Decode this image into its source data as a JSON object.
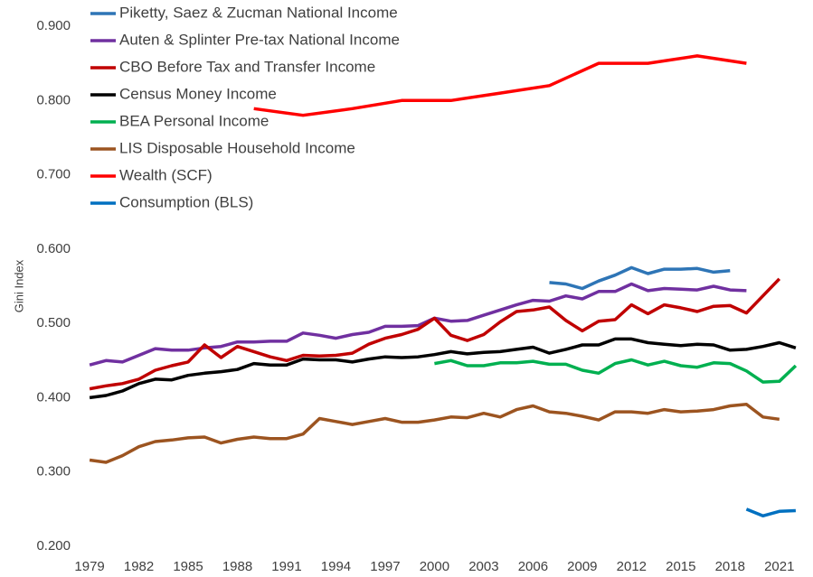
{
  "chart_data": {
    "type": "line",
    "y_label": "Gini Index",
    "x": [
      1979,
      1980,
      1981,
      1982,
      1983,
      1984,
      1985,
      1986,
      1987,
      1988,
      1989,
      1990,
      1991,
      1992,
      1993,
      1994,
      1995,
      1996,
      1997,
      1998,
      1999,
      2000,
      2001,
      2002,
      2003,
      2004,
      2005,
      2006,
      2007,
      2008,
      2009,
      2010,
      2011,
      2012,
      2013,
      2014,
      2015,
      2016,
      2017,
      2018,
      2019,
      2020,
      2021,
      2022
    ],
    "series": [
      {
        "name": "Piketty, Saez & Zucman National Income",
        "color": "#2e75b6",
        "x": [
          2007,
          2008,
          2009,
          2010,
          2011,
          2012,
          2013,
          2014,
          2015,
          2016,
          2017,
          2018
        ],
        "values": [
          0.555,
          0.553,
          0.547,
          0.557,
          0.565,
          0.575,
          0.567,
          0.573,
          0.573,
          0.574,
          0.569,
          0.571
        ]
      },
      {
        "name": "Auten & Splinter Pre-tax National Income",
        "color": "#7030a0",
        "values": [
          0.444,
          0.45,
          0.448,
          0.457,
          0.466,
          0.464,
          0.464,
          0.467,
          0.469,
          0.475,
          0.475,
          0.476,
          0.476,
          0.487,
          0.484,
          0.48,
          0.485,
          0.488,
          0.496,
          0.496,
          0.497,
          0.507,
          0.503,
          0.504,
          0.511,
          0.518,
          0.525,
          0.531,
          0.53,
          0.537,
          0.533,
          0.543,
          0.543,
          0.553,
          0.544,
          0.547,
          0.546,
          0.545,
          0.55,
          0.545,
          0.544,
          null,
          null,
          null
        ]
      },
      {
        "name": "CBO Before Tax and Transfer Income",
        "color": "#c00000",
        "values": [
          0.412,
          0.416,
          0.419,
          0.425,
          0.437,
          0.443,
          0.448,
          0.471,
          0.454,
          0.469,
          0.462,
          0.455,
          0.45,
          0.457,
          0.456,
          0.457,
          0.46,
          0.472,
          0.48,
          0.485,
          0.492,
          0.507,
          0.484,
          0.477,
          0.485,
          0.502,
          0.516,
          0.518,
          0.522,
          0.504,
          0.49,
          0.503,
          0.505,
          0.525,
          0.513,
          0.525,
          0.521,
          0.516,
          0.523,
          0.524,
          0.514,
          0.537,
          0.56,
          null
        ]
      },
      {
        "name": "Census Money Income",
        "color": "#000000",
        "values": [
          0.4,
          0.403,
          0.409,
          0.419,
          0.425,
          0.424,
          0.43,
          0.433,
          0.435,
          0.438,
          0.446,
          0.444,
          0.444,
          0.452,
          0.451,
          0.451,
          0.448,
          0.452,
          0.455,
          0.454,
          0.455,
          0.458,
          0.462,
          0.459,
          0.461,
          0.462,
          0.465,
          0.468,
          0.46,
          0.465,
          0.471,
          0.471,
          0.479,
          0.479,
          0.474,
          0.472,
          0.47,
          0.472,
          0.471,
          0.464,
          0.465,
          0.469,
          0.474,
          0.467
        ]
      },
      {
        "name": "BEA Personal Income",
        "color": "#00b050",
        "values": [
          null,
          null,
          null,
          null,
          null,
          null,
          null,
          null,
          null,
          null,
          null,
          null,
          null,
          null,
          null,
          null,
          null,
          null,
          null,
          null,
          null,
          0.446,
          0.45,
          0.443,
          0.443,
          0.447,
          0.447,
          0.449,
          0.445,
          0.445,
          0.437,
          0.433,
          0.446,
          0.451,
          0.444,
          0.449,
          0.443,
          0.441,
          0.447,
          0.446,
          0.436,
          0.421,
          0.422,
          0.443
        ]
      },
      {
        "name": "LIS Disposable Household Income",
        "color": "#9c5420",
        "values": [
          0.316,
          0.313,
          0.322,
          0.334,
          0.341,
          0.343,
          0.346,
          0.347,
          0.339,
          0.344,
          0.347,
          0.345,
          0.345,
          0.351,
          0.372,
          0.368,
          0.364,
          0.368,
          0.372,
          0.367,
          0.367,
          0.37,
          0.374,
          0.373,
          0.379,
          0.374,
          0.384,
          0.389,
          0.381,
          0.379,
          0.375,
          0.37,
          0.381,
          0.381,
          0.379,
          0.384,
          0.381,
          0.382,
          0.384,
          0.389,
          0.391,
          0.374,
          0.371,
          null
        ]
      },
      {
        "name": "Wealth (SCF)",
        "color": "#ff0000",
        "x": [
          1989,
          1992,
          1995,
          1998,
          2001,
          2004,
          2007,
          2010,
          2013,
          2016,
          2019
        ],
        "values": [
          0.789,
          0.78,
          0.789,
          0.8,
          0.8,
          0.81,
          0.82,
          0.85,
          0.85,
          0.86,
          0.85
        ]
      },
      {
        "name": "Consumption (BLS)",
        "color": "#0070c0",
        "x": [
          2019,
          2020,
          2021,
          2022
        ],
        "values": [
          0.25,
          0.241,
          0.247,
          0.248
        ]
      }
    ],
    "xlim": [
      1978.5,
      2022.5
    ],
    "xticks": [
      1979,
      1982,
      1985,
      1988,
      1991,
      1994,
      1997,
      2000,
      2003,
      2006,
      2009,
      2012,
      2015,
      2018,
      2021
    ],
    "ylim": [
      0.2,
      0.9
    ],
    "yticks": [
      {
        "value": 0.2,
        "label": "0.200"
      },
      {
        "value": 0.3,
        "label": "0.300"
      },
      {
        "value": 0.4,
        "label": "0.400"
      },
      {
        "value": 0.5,
        "label": "0.500"
      },
      {
        "value": 0.6,
        "label": "0.600"
      },
      {
        "value": 0.7,
        "label": "0.700"
      },
      {
        "value": 0.8,
        "label": "0.800"
      },
      {
        "value": 0.9,
        "label": "0.900"
      }
    ],
    "grid": false,
    "legend": "top-left"
  }
}
